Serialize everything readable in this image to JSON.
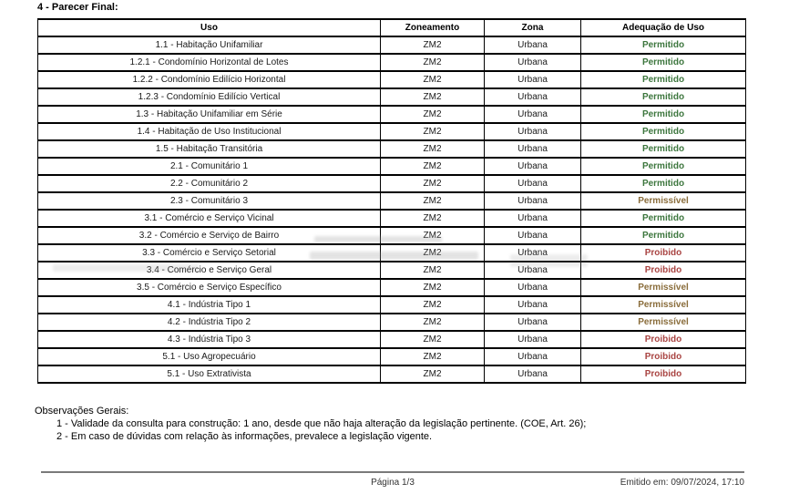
{
  "title": "4 - Parecer Final:",
  "table": {
    "headers": [
      "Uso",
      "Zoneamento",
      "Zona",
      "Adequação de Uso"
    ],
    "rows": [
      {
        "uso": "1.1 - Habitação Unifamiliar",
        "zoneamento": "ZM2",
        "zona": "Urbana",
        "adequacao": "Permitido",
        "status": "permitido"
      },
      {
        "uso": "1.2.1 - Condomínio Horizontal de Lotes",
        "zoneamento": "ZM2",
        "zona": "Urbana",
        "adequacao": "Permitido",
        "status": "permitido"
      },
      {
        "uso": "1.2.2 - Condomínio Edilício Horizontal",
        "zoneamento": "ZM2",
        "zona": "Urbana",
        "adequacao": "Permitido",
        "status": "permitido"
      },
      {
        "uso": "1.2.3 - Condomínio Edilício Vertical",
        "zoneamento": "ZM2",
        "zona": "Urbana",
        "adequacao": "Permitido",
        "status": "permitido"
      },
      {
        "uso": "1.3 - Habitação Unifamiliar em Série",
        "zoneamento": "ZM2",
        "zona": "Urbana",
        "adequacao": "Permitido",
        "status": "permitido"
      },
      {
        "uso": "1.4 - Habitação de Uso Institucional",
        "zoneamento": "ZM2",
        "zona": "Urbana",
        "adequacao": "Permitido",
        "status": "permitido"
      },
      {
        "uso": "1.5 - Habitação Transitória",
        "zoneamento": "ZM2",
        "zona": "Urbana",
        "adequacao": "Permitido",
        "status": "permitido"
      },
      {
        "uso": "2.1 - Comunitário 1",
        "zoneamento": "ZM2",
        "zona": "Urbana",
        "adequacao": "Permitido",
        "status": "permitido"
      },
      {
        "uso": "2.2 - Comunitário 2",
        "zoneamento": "ZM2",
        "zona": "Urbana",
        "adequacao": "Permitido",
        "status": "permitido"
      },
      {
        "uso": "2.3 - Comunitário 3",
        "zoneamento": "ZM2",
        "zona": "Urbana",
        "adequacao": "Permissível",
        "status": "permissivel"
      },
      {
        "uso": "3.1 - Comércio e Serviço Vicinal",
        "zoneamento": "ZM2",
        "zona": "Urbana",
        "adequacao": "Permitido",
        "status": "permitido"
      },
      {
        "uso": "3.2 - Comércio e Serviço de Bairro",
        "zoneamento": "ZM2",
        "zona": "Urbana",
        "adequacao": "Permitido",
        "status": "permitido"
      },
      {
        "uso": "3.3 - Comércio e Serviço Setorial",
        "zoneamento": "ZM2",
        "zona": "Urbana",
        "adequacao": "Proibido",
        "status": "proibido"
      },
      {
        "uso": "3.4 - Comércio e Serviço Geral",
        "zoneamento": "ZM2",
        "zona": "Urbana",
        "adequacao": "Proibido",
        "status": "proibido"
      },
      {
        "uso": "3.5 - Comércio e Serviço Específico",
        "zoneamento": "ZM2",
        "zona": "Urbana",
        "adequacao": "Permissível",
        "status": "permissivel"
      },
      {
        "uso": "4.1 - Indústria Tipo 1",
        "zoneamento": "ZM2",
        "zona": "Urbana",
        "adequacao": "Permissível",
        "status": "permissivel"
      },
      {
        "uso": "4.2 - Indústria Tipo 2",
        "zoneamento": "ZM2",
        "zona": "Urbana",
        "adequacao": "Permissível",
        "status": "permissivel"
      },
      {
        "uso": "4.3 - Indústria Tipo 3",
        "zoneamento": "ZM2",
        "zona": "Urbana",
        "adequacao": "Proibido",
        "status": "proibido"
      },
      {
        "uso": "5.1 - Uso Agropecuário",
        "zoneamento": "ZM2",
        "zona": "Urbana",
        "adequacao": "Proibido",
        "status": "proibido"
      },
      {
        "uso": "5.1 - Uso Extrativista",
        "zoneamento": "ZM2",
        "zona": "Urbana",
        "adequacao": "Proibido",
        "status": "proibido"
      }
    ]
  },
  "status_colors": {
    "permitido": "#3c763d",
    "permissivel": "#8a6d3b",
    "proibido": "#a94442"
  },
  "observations": {
    "heading": "Observações Gerais:",
    "items": [
      "1 - Validade da consulta para construção: 1 ano, desde que não haja alteração da legislação pertinente. (COE, Art. 26);",
      "2 - Em caso de dúvidas com relação às informações, prevalece a legislação vigente."
    ]
  },
  "footer": {
    "page": "Página 1/3",
    "emitted": "Emitido em: 09/07/2024, 17:10"
  }
}
